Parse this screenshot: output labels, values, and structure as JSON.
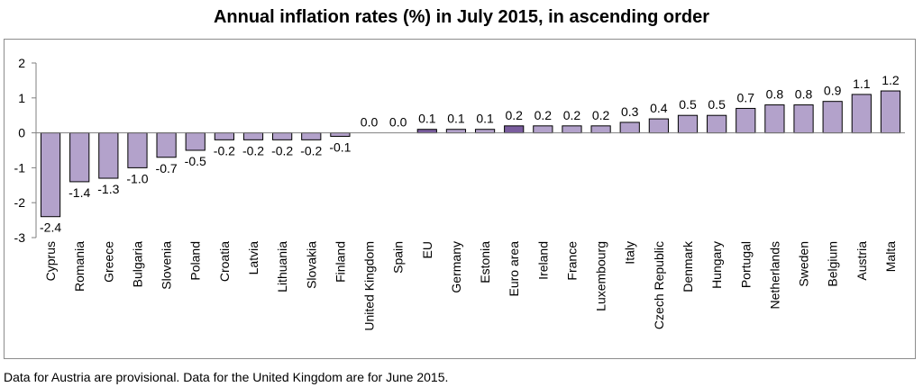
{
  "title": "Annual inflation rates (%) in July 2015, in ascending order",
  "footnote": "Data for Austria are provisional. Data for the United Kingdom are for June 2015.",
  "colors": {
    "bar": "#b3a2cb",
    "bar_highlight": "#7a5d9e",
    "bar_stroke": "#000000",
    "axis": "#7f7f7f"
  },
  "chart_data": {
    "type": "bar",
    "categories": [
      "Cyprus",
      "Romania",
      "Greece",
      "Bulgaria",
      "Slovenia",
      "Poland",
      "Croatia",
      "Latvia",
      "Lithuania",
      "Slovakia",
      "Finland",
      "United Kingdom",
      "Spain",
      "EU",
      "Germany",
      "Estonia",
      "Euro area",
      "Ireland",
      "France",
      "Luxembourg",
      "Italy",
      "Czech Republic",
      "Denmark",
      "Hungary",
      "Portugal",
      "Netherlands",
      "Sweden",
      "Belgium",
      "Austria",
      "Malta"
    ],
    "values": [
      -2.4,
      -1.4,
      -1.3,
      -1.0,
      -0.7,
      -0.5,
      -0.2,
      -0.2,
      -0.2,
      -0.2,
      -0.1,
      0.0,
      0.0,
      0.1,
      0.1,
      0.1,
      0.2,
      0.2,
      0.2,
      0.2,
      0.3,
      0.4,
      0.5,
      0.5,
      0.7,
      0.8,
      0.8,
      0.9,
      1.1,
      1.2
    ],
    "value_labels": [
      "-2.4",
      "-1.4",
      "-1.3",
      "-1.0",
      "-0.7",
      "-0.5",
      "-0.2",
      "-0.2",
      "-0.2",
      "-0.2",
      "-0.1",
      "0.0",
      "0.0",
      "0.1",
      "0.1",
      "0.1",
      "0.2",
      "0.2",
      "0.2",
      "0.2",
      "0.3",
      "0.4",
      "0.5",
      "0.5",
      "0.7",
      "0.8",
      "0.8",
      "0.9",
      "1.1",
      "1.2"
    ],
    "highlight": [
      "EU",
      "Euro area"
    ],
    "ylim": [
      -3,
      2
    ],
    "yticks": [
      -3,
      -2,
      -1,
      0,
      1,
      2
    ],
    "ytick_labels": [
      "-3",
      "-2",
      "-1",
      "0",
      "1",
      "2"
    ],
    "grid": false,
    "legend": "none",
    "xlabel": "",
    "ylabel": ""
  }
}
